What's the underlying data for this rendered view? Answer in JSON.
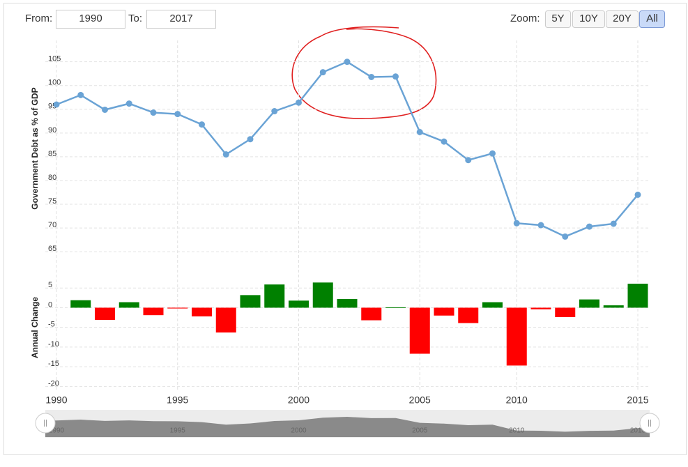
{
  "controls": {
    "from_label": "From:",
    "from_value": "1990",
    "to_label": "To:",
    "to_value": "2017",
    "zoom_label": "Zoom:",
    "zoom_buttons": [
      "5Y",
      "10Y",
      "20Y",
      "All"
    ],
    "active_zoom": 3
  },
  "chart_data": [
    {
      "type": "line",
      "y_label": "Government Debt as % of GDP",
      "categories": [
        "1990",
        null,
        null,
        null,
        null,
        "1995",
        null,
        null,
        null,
        null,
        "2000",
        null,
        null,
        null,
        null,
        "2005",
        null,
        null,
        null,
        "2010",
        null,
        null,
        null,
        null,
        "2015"
      ],
      "values": [
        96.0,
        98.0,
        94.9,
        96.2,
        94.3,
        94.0,
        91.8,
        85.5,
        88.7,
        94.6,
        96.4,
        102.8,
        105.0,
        101.8,
        101.9,
        90.2,
        88.2,
        84.3,
        85.7,
        71.0,
        70.6,
        68.2,
        70.3,
        70.9,
        77.0
      ],
      "color": "#6aa3d5",
      "ylim": [
        64,
        109.5
      ],
      "yticks": [
        65,
        70,
        75,
        80,
        85,
        90,
        95,
        100,
        105
      ],
      "grid": true
    },
    {
      "type": "bar",
      "y_label": "Annual Change",
      "categories": [
        "1990",
        null,
        null,
        null,
        null,
        "1995",
        null,
        null,
        null,
        null,
        "2000",
        null,
        null,
        null,
        null,
        "2005",
        null,
        null,
        null,
        "2010",
        null,
        null,
        null,
        null,
        "2015"
      ],
      "values": [
        null,
        1.9,
        -3.1,
        1.4,
        -1.9,
        -0.2,
        -2.2,
        -6.3,
        3.2,
        5.9,
        1.8,
        6.4,
        2.2,
        -3.2,
        0.1,
        -11.7,
        -2.0,
        -3.9,
        1.4,
        -14.7,
        -0.4,
        -2.4,
        2.1,
        0.6,
        6.1
      ],
      "positive_color": "#008000",
      "negative_color": "#ff0000",
      "ylim": [
        -21,
        10
      ],
      "yticks": [
        5,
        0,
        -5,
        -10,
        -15,
        -20
      ],
      "grid": true
    }
  ]
}
